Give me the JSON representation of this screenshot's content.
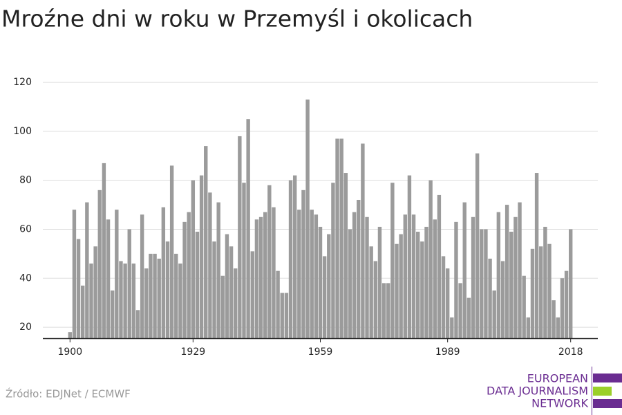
{
  "chart_data": {
    "type": "bar",
    "title": "Mroźne dni w roku w Przemyśl i okolicach",
    "source": "Źródło: EDJNet / ECMWF",
    "logo": [
      "EUROPEAN",
      "DATA JOURNALISM",
      "NETWORK"
    ],
    "color": "#9b9b9b",
    "grid": true,
    "x": [
      1900,
      1901,
      1902,
      1903,
      1904,
      1905,
      1906,
      1907,
      1908,
      1909,
      1910,
      1911,
      1912,
      1913,
      1914,
      1915,
      1916,
      1917,
      1918,
      1919,
      1920,
      1921,
      1922,
      1923,
      1924,
      1925,
      1926,
      1927,
      1928,
      1929,
      1930,
      1931,
      1932,
      1933,
      1934,
      1935,
      1936,
      1937,
      1938,
      1939,
      1940,
      1941,
      1942,
      1943,
      1944,
      1945,
      1946,
      1947,
      1948,
      1949,
      1950,
      1951,
      1952,
      1953,
      1954,
      1955,
      1956,
      1957,
      1958,
      1959,
      1960,
      1961,
      1962,
      1963,
      1964,
      1965,
      1966,
      1967,
      1968,
      1969,
      1970,
      1971,
      1972,
      1973,
      1974,
      1975,
      1976,
      1977,
      1978,
      1979,
      1980,
      1981,
      1982,
      1983,
      1984,
      1985,
      1986,
      1987,
      1988,
      1989,
      1990,
      1991,
      1992,
      1993,
      1994,
      1995,
      1996,
      1997,
      1998,
      1999,
      2000,
      2001,
      2002,
      2003,
      2004,
      2005,
      2006,
      2007,
      2008,
      2009,
      2010,
      2011,
      2012,
      2013,
      2014,
      2015,
      2016,
      2017,
      2018
    ],
    "values": [
      18,
      68,
      56,
      37,
      71,
      46,
      53,
      76,
      87,
      64,
      35,
      68,
      47,
      46,
      60,
      46,
      27,
      66,
      44,
      50,
      50,
      48,
      69,
      55,
      86,
      50,
      46,
      63,
      67,
      80,
      59,
      82,
      94,
      75,
      55,
      71,
      41,
      58,
      53,
      44,
      98,
      79,
      105,
      51,
      64,
      65,
      67,
      78,
      69,
      43,
      34,
      34,
      80,
      82,
      68,
      76,
      113,
      68,
      66,
      61,
      49,
      58,
      79,
      97,
      97,
      83,
      60,
      67,
      72,
      95,
      65,
      53,
      47,
      61,
      38,
      38,
      79,
      54,
      58,
      66,
      82,
      66,
      59,
      55,
      61,
      80,
      64,
      74,
      49,
      44,
      24,
      63,
      38,
      71,
      32,
      65,
      91,
      60,
      60,
      48,
      35,
      67,
      47,
      70,
      59,
      65,
      71,
      41,
      24,
      52,
      83,
      53,
      61,
      54,
      31,
      24,
      40,
      43,
      60
    ],
    "xlim": [
      1893.6,
      2024.4
    ],
    "xticks": [
      1900,
      1929,
      1959,
      1989,
      2018
    ],
    "ylim": [
      15.5,
      122
    ],
    "yticks": [
      20,
      40,
      60,
      80,
      100,
      120
    ]
  }
}
